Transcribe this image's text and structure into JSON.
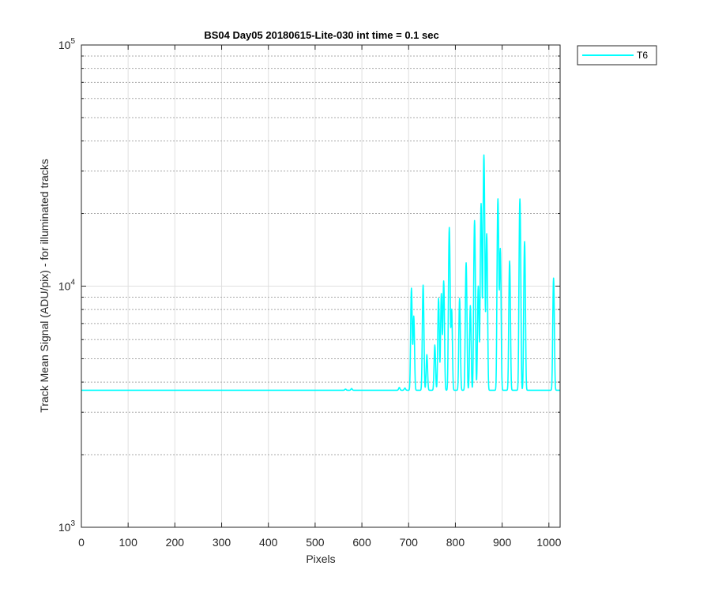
{
  "chart_data": {
    "type": "line",
    "title": "BS04 Day05 20180615-Lite-030 int time = 0.1 sec",
    "xlabel": "Pixels",
    "ylabel": "Track Mean Signal (ADU/pix) - for illuminated tracks",
    "xlim": [
      0,
      1024
    ],
    "ylim": [
      1000,
      100000
    ],
    "yscale": "log",
    "xticks": [
      0,
      100,
      200,
      300,
      400,
      500,
      600,
      700,
      800,
      900,
      1000
    ],
    "yticks": [
      {
        "base": "10",
        "exp": "3",
        "value": 1000
      },
      {
        "base": "10",
        "exp": "4",
        "value": 10000
      },
      {
        "base": "10",
        "exp": "5",
        "value": 100000
      }
    ],
    "grid": true,
    "legend_position": "outside-top-right",
    "series": [
      {
        "name": "T6",
        "color": "#00ffff",
        "baseline": 3700,
        "peaks": [
          {
            "x": 565,
            "y": 3740
          },
          {
            "x": 578,
            "y": 3760
          },
          {
            "x": 680,
            "y": 3800
          },
          {
            "x": 692,
            "y": 3780
          },
          {
            "x": 706,
            "y": 9800
          },
          {
            "x": 711,
            "y": 7500
          },
          {
            "x": 731,
            "y": 10100
          },
          {
            "x": 739,
            "y": 5200
          },
          {
            "x": 756,
            "y": 5700
          },
          {
            "x": 764,
            "y": 8900
          },
          {
            "x": 770,
            "y": 9300
          },
          {
            "x": 775,
            "y": 10500
          },
          {
            "x": 787,
            "y": 17500
          },
          {
            "x": 792,
            "y": 8000
          },
          {
            "x": 809,
            "y": 8900
          },
          {
            "x": 823,
            "y": 12500
          },
          {
            "x": 832,
            "y": 8300
          },
          {
            "x": 841,
            "y": 18700
          },
          {
            "x": 849,
            "y": 10000
          },
          {
            "x": 855,
            "y": 22000
          },
          {
            "x": 861,
            "y": 35000
          },
          {
            "x": 867,
            "y": 16500
          },
          {
            "x": 891,
            "y": 23000
          },
          {
            "x": 896,
            "y": 14300
          },
          {
            "x": 916,
            "y": 12700
          },
          {
            "x": 938,
            "y": 23000
          },
          {
            "x": 948,
            "y": 15300
          },
          {
            "x": 1010,
            "y": 10800
          }
        ]
      }
    ]
  }
}
